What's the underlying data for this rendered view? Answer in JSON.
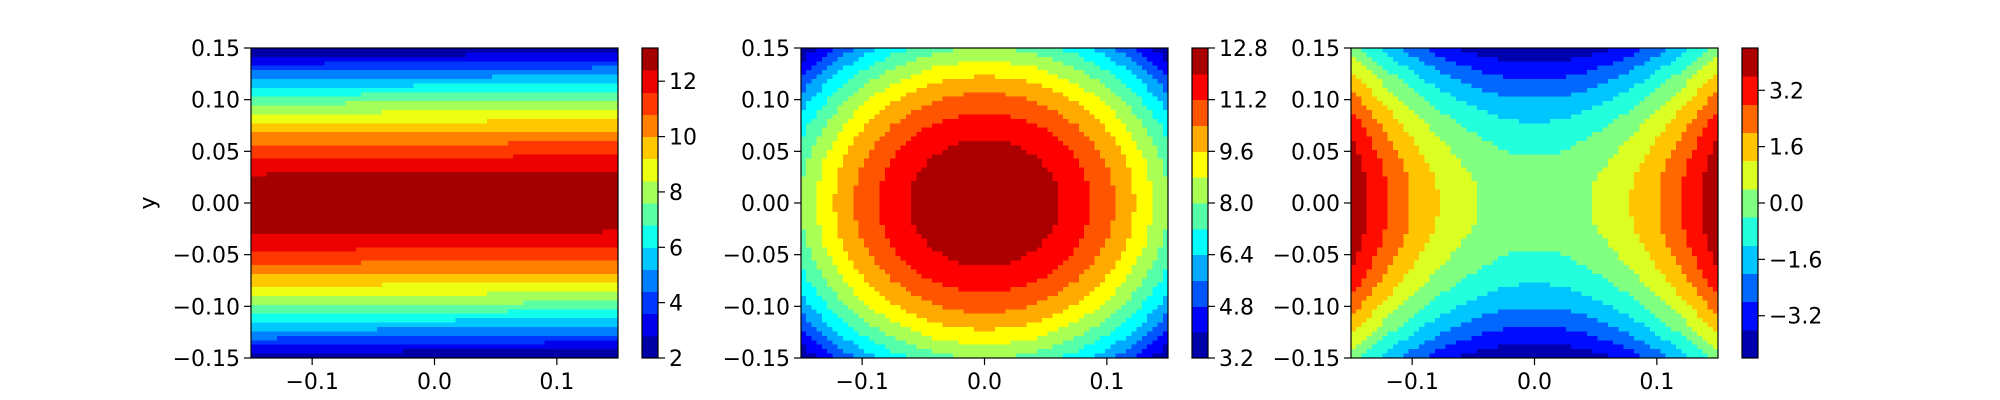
{
  "chart_data": [
    {
      "type": "heatmap",
      "variant": "contourf",
      "field": "horizontal-bands",
      "title": "",
      "xlabel": "",
      "ylabel": "y",
      "xlim": [
        -0.15,
        0.15
      ],
      "ylim": [
        -0.15,
        0.15
      ],
      "x_ticks": [
        -0.1,
        0.0,
        0.1
      ],
      "x_tick_labels": [
        "−0.1",
        "0.0",
        "0.1"
      ],
      "y_ticks": [
        0.15,
        0.1,
        0.05,
        0.0,
        -0.05,
        -0.1,
        -0.15
      ],
      "y_tick_labels": [
        "0.15",
        "0.10",
        "0.05",
        "0.00",
        "−0.05",
        "−0.10",
        "−0.15"
      ],
      "value_range": [
        2,
        13.2
      ],
      "levels": [
        2,
        2.8,
        3.6,
        4.4,
        5.2,
        6.0,
        6.8,
        7.6,
        8.4,
        9.2,
        10.0,
        10.8,
        11.6,
        12.4,
        13.2
      ],
      "colorbar_ticks": [
        2,
        4,
        6,
        8,
        10,
        12
      ],
      "colorbar_tick_labels": [
        "2",
        "4",
        "6",
        "8",
        "10",
        "12"
      ],
      "colormap": "jet",
      "grid": false
    },
    {
      "type": "heatmap",
      "variant": "contourf",
      "field": "central-peak",
      "title": "",
      "xlabel": "",
      "ylabel": "",
      "xlim": [
        -0.15,
        0.15
      ],
      "ylim": [
        -0.15,
        0.15
      ],
      "x_ticks": [
        -0.1,
        0.0,
        0.1
      ],
      "x_tick_labels": [
        "−0.1",
        "0.0",
        "0.1"
      ],
      "y_ticks": [
        0.15,
        0.1,
        0.05,
        0.0,
        -0.05,
        -0.1,
        -0.15
      ],
      "y_tick_labels": [
        "0.15",
        "0.10",
        "0.05",
        "0.00",
        "−0.05",
        "−0.10",
        "−0.15"
      ],
      "value_range": [
        3.2,
        12.8
      ],
      "levels": [
        3.2,
        4.0,
        4.8,
        5.6,
        6.4,
        7.2,
        8.0,
        8.8,
        9.6,
        10.4,
        11.2,
        12.0,
        12.8
      ],
      "colorbar_ticks": [
        3.2,
        4.8,
        6.4,
        8.0,
        9.6,
        11.2,
        12.8
      ],
      "colorbar_tick_labels": [
        "3.2",
        "4.8",
        "6.4",
        "8.0",
        "9.6",
        "11.2",
        "12.8"
      ],
      "colormap": "jet",
      "grid": false
    },
    {
      "type": "heatmap",
      "variant": "contourf",
      "field": "saddle",
      "title": "",
      "xlabel": "",
      "ylabel": "",
      "xlim": [
        -0.15,
        0.15
      ],
      "ylim": [
        -0.15,
        0.15
      ],
      "x_ticks": [
        -0.1,
        0.0,
        0.1
      ],
      "x_tick_labels": [
        "−0.1",
        "0.0",
        "0.1"
      ],
      "y_ticks": [
        0.15,
        0.1,
        0.05,
        0.0,
        -0.05,
        -0.1,
        -0.15
      ],
      "y_tick_labels": [
        "0.15",
        "0.10",
        "0.05",
        "0.00",
        "−0.05",
        "−0.10",
        "−0.15"
      ],
      "value_range": [
        -4.4,
        4.4
      ],
      "levels": [
        -4.4,
        -3.6,
        -2.8,
        -2.0,
        -1.2,
        -0.4,
        0.4,
        1.2,
        2.0,
        2.8,
        3.6,
        4.4
      ],
      "colorbar_ticks": [
        -3.2,
        -1.6,
        0.0,
        1.6,
        3.2
      ],
      "colorbar_tick_labels": [
        "−3.2",
        "−1.6",
        "0.0",
        "1.6",
        "3.2"
      ],
      "colormap": "jet",
      "grid": false
    }
  ]
}
